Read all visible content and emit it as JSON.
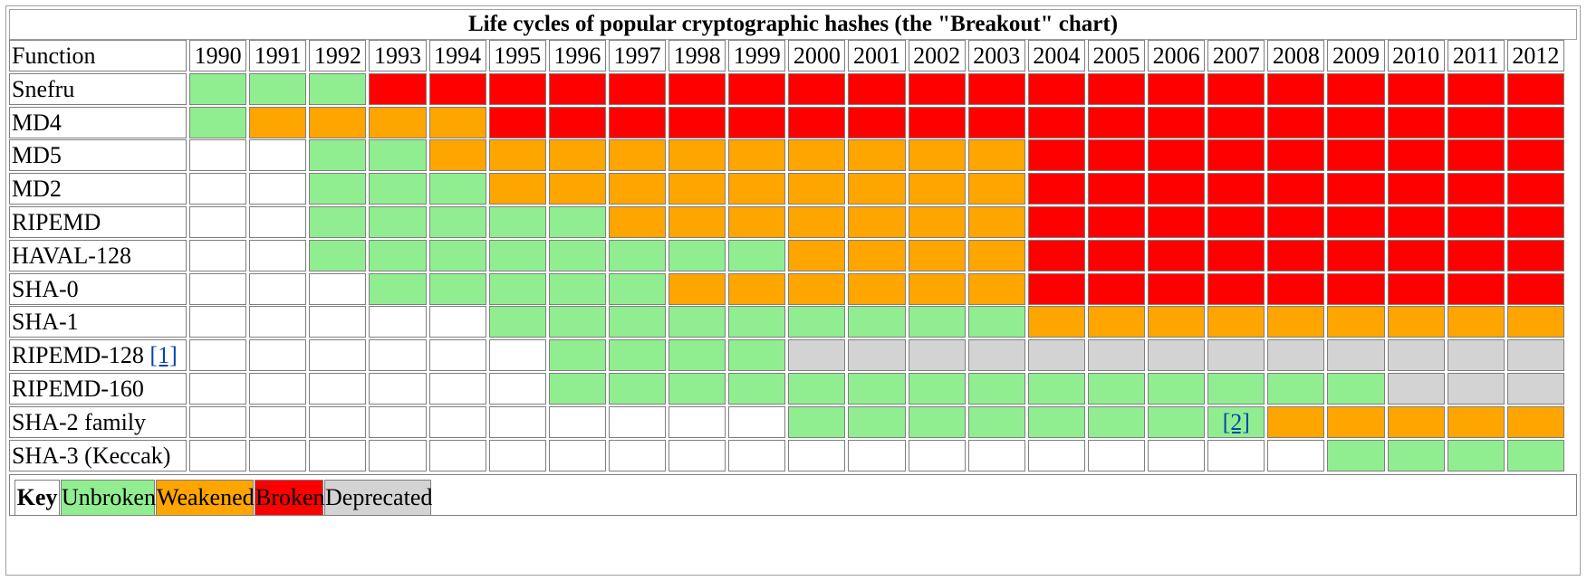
{
  "chart_data": {
    "type": "table",
    "title": "Life cycles of popular cryptographic hashes (the \"Breakout\" chart)",
    "header_label": "Function",
    "years": [
      "1990",
      "1991",
      "1992",
      "1993",
      "1994",
      "1995",
      "1996",
      "1997",
      "1998",
      "1999",
      "2000",
      "2001",
      "2002",
      "2003",
      "2004",
      "2005",
      "2006",
      "2007",
      "2008",
      "2009",
      "2010",
      "2011",
      "2012"
    ],
    "state_colors": {
      "U": "#90ee90",
      "W": "#ffa500",
      "B": "#ff0000",
      "D": "#d3d3d3",
      "N": "#ffffff"
    },
    "rows": [
      {
        "name": "Snefru",
        "ref": "",
        "states": [
          "U",
          "U",
          "U",
          "B",
          "B",
          "B",
          "B",
          "B",
          "B",
          "B",
          "B",
          "B",
          "B",
          "B",
          "B",
          "B",
          "B",
          "B",
          "B",
          "B",
          "B",
          "B",
          "B"
        ]
      },
      {
        "name": "MD4",
        "ref": "",
        "states": [
          "U",
          "W",
          "W",
          "W",
          "W",
          "B",
          "B",
          "B",
          "B",
          "B",
          "B",
          "B",
          "B",
          "B",
          "B",
          "B",
          "B",
          "B",
          "B",
          "B",
          "B",
          "B",
          "B"
        ]
      },
      {
        "name": "MD5",
        "ref": "",
        "states": [
          "N",
          "N",
          "U",
          "U",
          "W",
          "W",
          "W",
          "W",
          "W",
          "W",
          "W",
          "W",
          "W",
          "W",
          "B",
          "B",
          "B",
          "B",
          "B",
          "B",
          "B",
          "B",
          "B"
        ]
      },
      {
        "name": "MD2",
        "ref": "",
        "states": [
          "N",
          "N",
          "U",
          "U",
          "U",
          "W",
          "W",
          "W",
          "W",
          "W",
          "W",
          "W",
          "W",
          "W",
          "B",
          "B",
          "B",
          "B",
          "B",
          "B",
          "B",
          "B",
          "B"
        ]
      },
      {
        "name": "RIPEMD",
        "ref": "",
        "states": [
          "N",
          "N",
          "U",
          "U",
          "U",
          "U",
          "U",
          "W",
          "W",
          "W",
          "W",
          "W",
          "W",
          "W",
          "B",
          "B",
          "B",
          "B",
          "B",
          "B",
          "B",
          "B",
          "B"
        ]
      },
      {
        "name": "HAVAL-128",
        "ref": "",
        "states": [
          "N",
          "N",
          "U",
          "U",
          "U",
          "U",
          "U",
          "U",
          "U",
          "U",
          "W",
          "W",
          "W",
          "W",
          "B",
          "B",
          "B",
          "B",
          "B",
          "B",
          "B",
          "B",
          "B"
        ]
      },
      {
        "name": "SHA-0",
        "ref": "",
        "states": [
          "N",
          "N",
          "N",
          "U",
          "U",
          "U",
          "U",
          "U",
          "W",
          "W",
          "W",
          "W",
          "W",
          "W",
          "B",
          "B",
          "B",
          "B",
          "B",
          "B",
          "B",
          "B",
          "B"
        ]
      },
      {
        "name": "SHA-1",
        "ref": "",
        "states": [
          "N",
          "N",
          "N",
          "N",
          "N",
          "U",
          "U",
          "U",
          "U",
          "U",
          "U",
          "U",
          "U",
          "U",
          "W",
          "W",
          "W",
          "W",
          "W",
          "W",
          "W",
          "W",
          "W"
        ]
      },
      {
        "name": "RIPEMD-128",
        "ref": "[1]",
        "states": [
          "N",
          "N",
          "N",
          "N",
          "N",
          "N",
          "U",
          "U",
          "U",
          "U",
          "D",
          "D",
          "D",
          "D",
          "D",
          "D",
          "D",
          "D",
          "D",
          "D",
          "D",
          "D",
          "D"
        ]
      },
      {
        "name": "RIPEMD-160",
        "ref": "",
        "states": [
          "N",
          "N",
          "N",
          "N",
          "N",
          "N",
          "U",
          "U",
          "U",
          "U",
          "U",
          "U",
          "U",
          "U",
          "U",
          "U",
          "U",
          "U",
          "U",
          "U",
          "D",
          "D",
          "D"
        ]
      },
      {
        "name": "SHA-2 family",
        "ref": "",
        "states": [
          "N",
          "N",
          "N",
          "N",
          "N",
          "N",
          "N",
          "N",
          "N",
          "N",
          "U",
          "U",
          "U",
          "U",
          "U",
          "U",
          "U",
          "U",
          "W",
          "W",
          "W",
          "W",
          "W"
        ],
        "cell_note": {
          "col": 17,
          "text": "[2]"
        }
      },
      {
        "name": "SHA-3 (Keccak)",
        "ref": "",
        "states": [
          "N",
          "N",
          "N",
          "N",
          "N",
          "N",
          "N",
          "N",
          "N",
          "N",
          "N",
          "N",
          "N",
          "N",
          "N",
          "N",
          "N",
          "N",
          "N",
          "U",
          "U",
          "U",
          "U"
        ]
      }
    ],
    "legend": {
      "title": "Key",
      "items": [
        {
          "label": "Unbroken",
          "color": "#90ee90"
        },
        {
          "label": "Weakened",
          "color": "#ffa500"
        },
        {
          "label": "Broken",
          "color": "#ff0000"
        },
        {
          "label": "Deprecated",
          "color": "#d3d3d3"
        }
      ]
    }
  }
}
